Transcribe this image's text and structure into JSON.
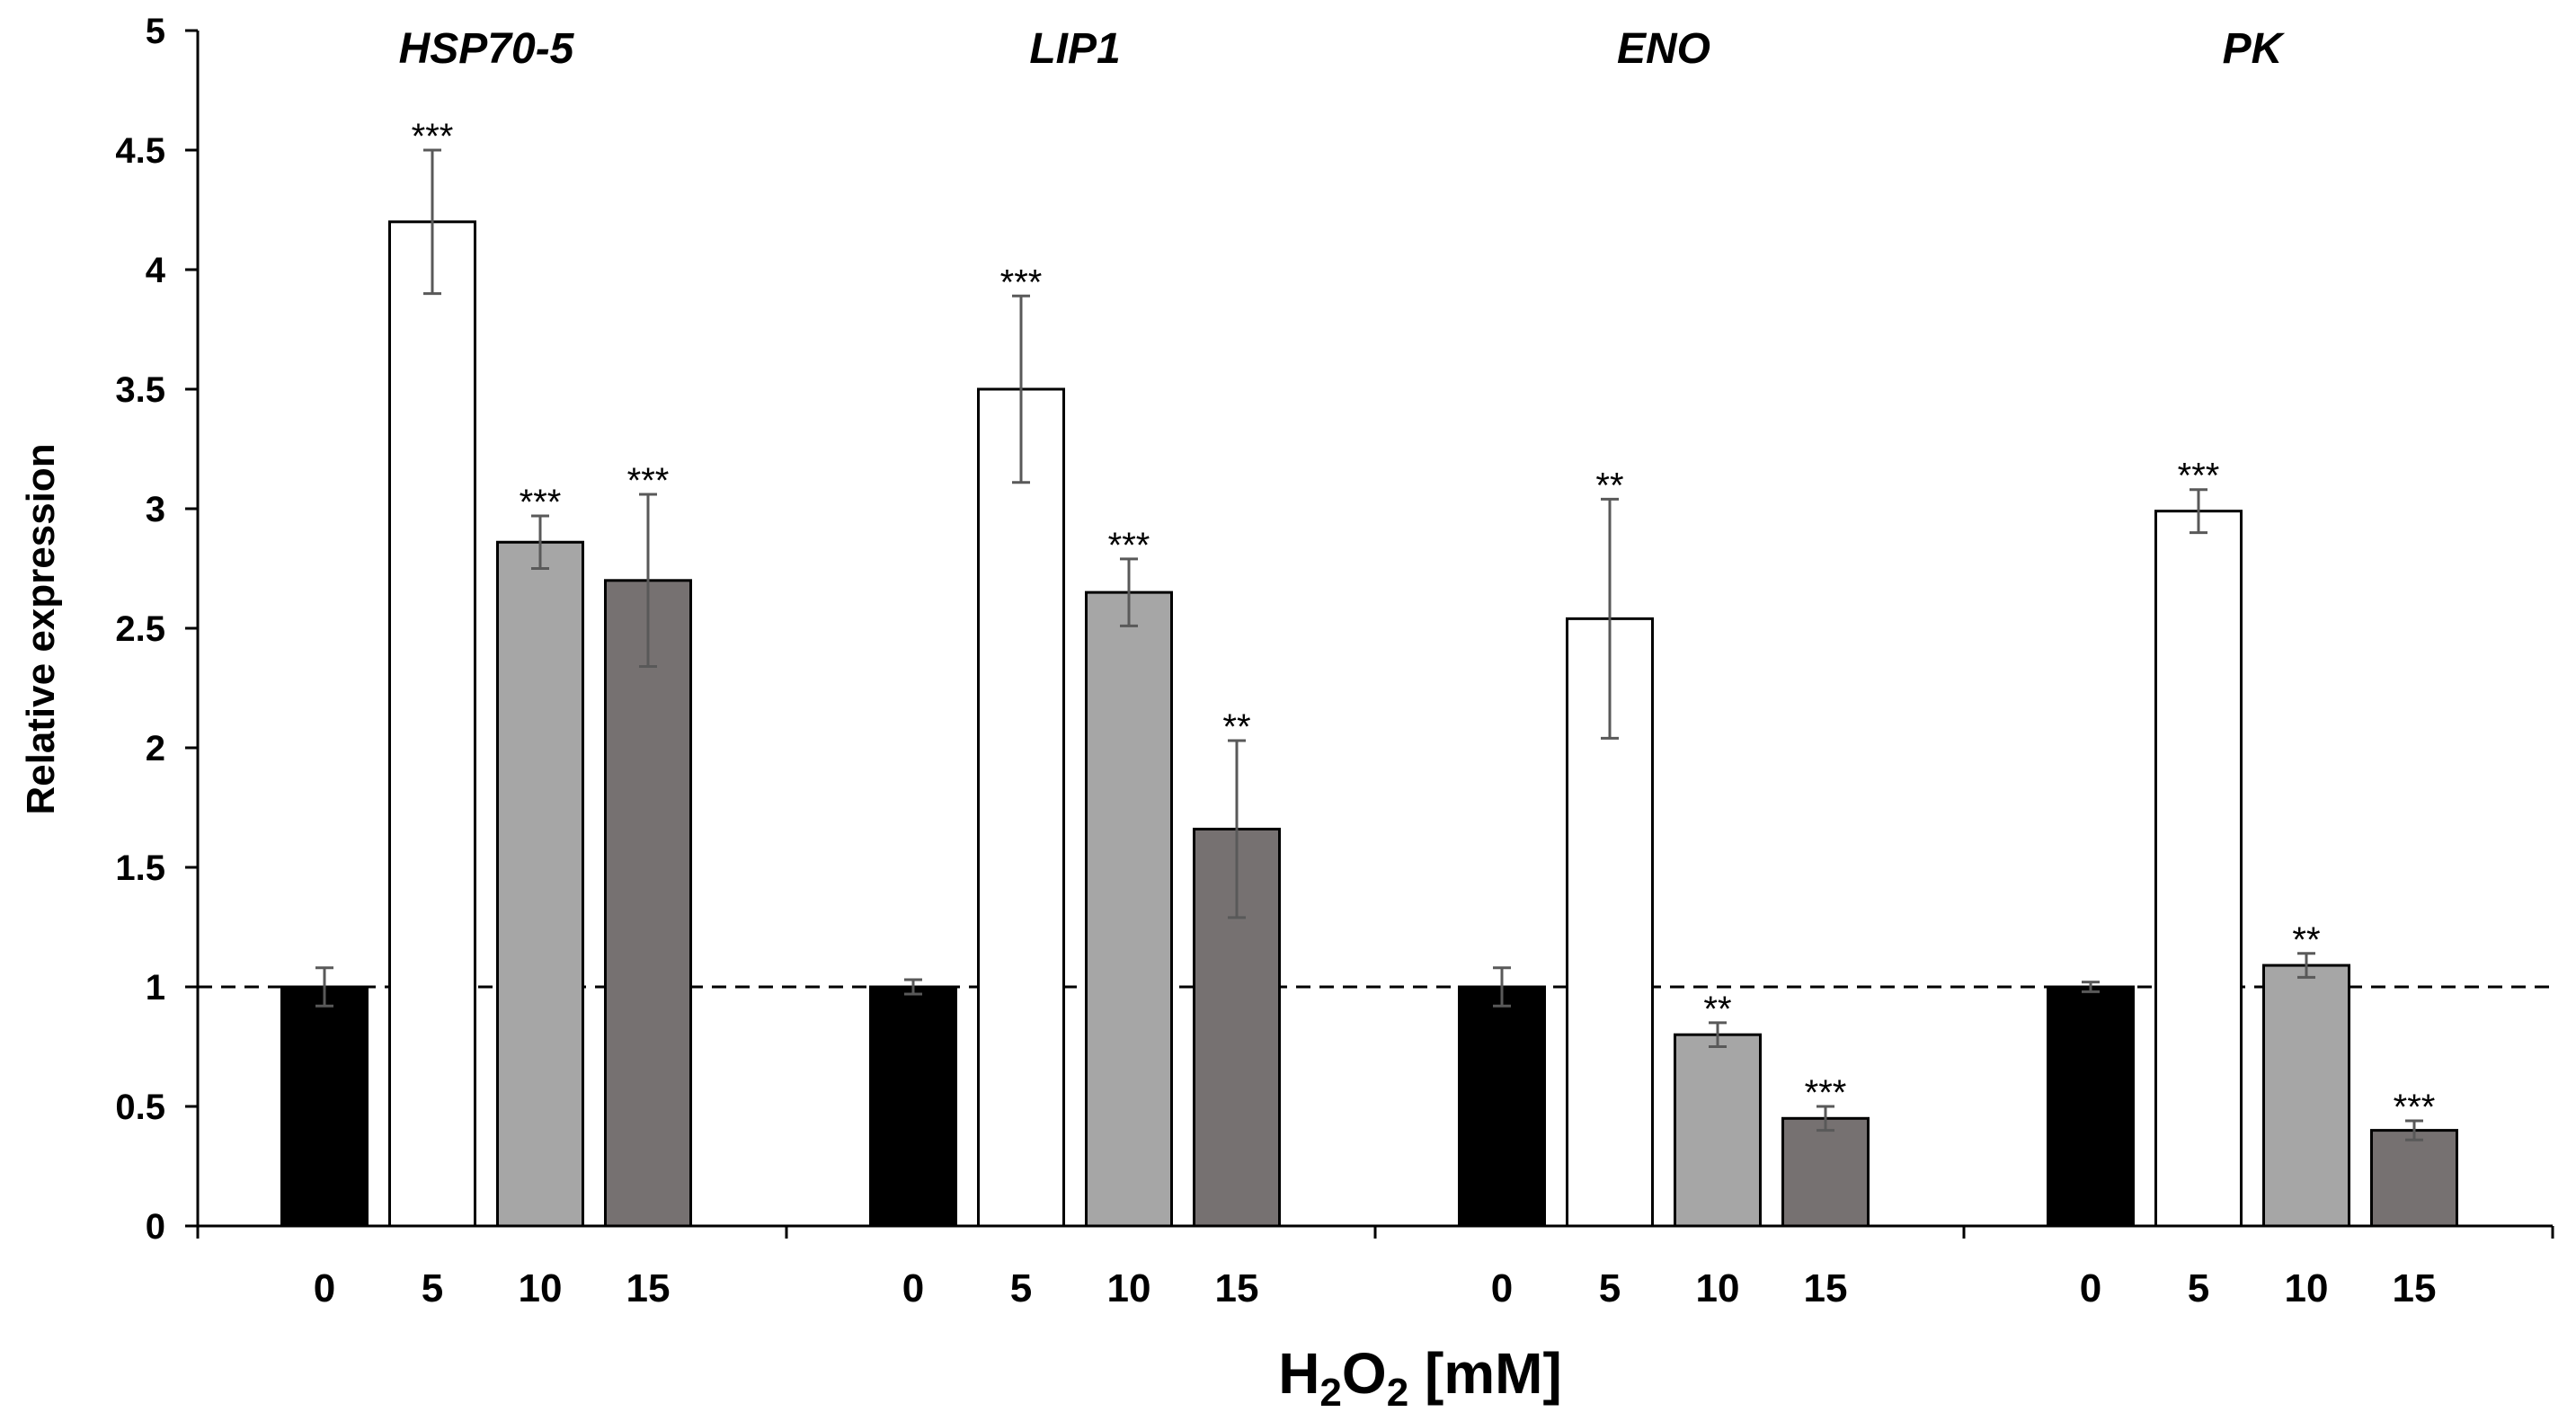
{
  "chart_data": {
    "type": "bar",
    "title": "",
    "ylabel": "Relative expression",
    "xlabel": {
      "prefix": "H",
      "sub1": "2",
      "mid": "O",
      "sub2": "2",
      "suffix": " [mM]"
    },
    "ylim": [
      0,
      5
    ],
    "yticks": [
      {
        "v": 0,
        "label": "0"
      },
      {
        "v": 0.5,
        "label": "0.5"
      },
      {
        "v": 1,
        "label": "1"
      },
      {
        "v": 1.5,
        "label": "1.5"
      },
      {
        "v": 2,
        "label": "2"
      },
      {
        "v": 2.5,
        "label": "2.5"
      },
      {
        "v": 3,
        "label": "3"
      },
      {
        "v": 3.5,
        "label": "3.5"
      },
      {
        "v": 4,
        "label": "4"
      },
      {
        "v": 4.5,
        "label": "4.5"
      },
      {
        "v": 5,
        "label": "5"
      }
    ],
    "reference_line": 1,
    "series_colors": [
      "#000000",
      "#ffffff",
      "#a6a6a6",
      "#767171"
    ],
    "categories": [
      "0",
      "5",
      "10",
      "15"
    ],
    "groups": [
      {
        "gene": "HSP70-5",
        "bars": [
          {
            "label": "0",
            "value": 1.0,
            "error": 0.08,
            "sig": ""
          },
          {
            "label": "5",
            "value": 4.2,
            "error": 0.3,
            "sig": "***"
          },
          {
            "label": "10",
            "value": 2.86,
            "error": 0.11,
            "sig": "***"
          },
          {
            "label": "15",
            "value": 2.7,
            "error": 0.36,
            "sig": "***"
          }
        ]
      },
      {
        "gene": "LIP1",
        "bars": [
          {
            "label": "0",
            "value": 1.0,
            "error": 0.03,
            "sig": ""
          },
          {
            "label": "5",
            "value": 3.5,
            "error": 0.39,
            "sig": "***"
          },
          {
            "label": "10",
            "value": 2.65,
            "error": 0.14,
            "sig": "***"
          },
          {
            "label": "15",
            "value": 1.66,
            "error": 0.37,
            "sig": "**"
          }
        ]
      },
      {
        "gene": "ENO",
        "bars": [
          {
            "label": "0",
            "value": 1.0,
            "error": 0.08,
            "sig": ""
          },
          {
            "label": "5",
            "value": 2.54,
            "error": 0.5,
            "sig": "**"
          },
          {
            "label": "10",
            "value": 0.8,
            "error": 0.05,
            "sig": "**"
          },
          {
            "label": "15",
            "value": 0.45,
            "error": 0.05,
            "sig": "***"
          }
        ]
      },
      {
        "gene": "PK",
        "bars": [
          {
            "label": "0",
            "value": 1.0,
            "error": 0.02,
            "sig": ""
          },
          {
            "label": "5",
            "value": 2.99,
            "error": 0.09,
            "sig": "***"
          },
          {
            "label": "10",
            "value": 1.09,
            "error": 0.05,
            "sig": "**"
          },
          {
            "label": "15",
            "value": 0.4,
            "error": 0.04,
            "sig": "***"
          }
        ]
      }
    ]
  }
}
